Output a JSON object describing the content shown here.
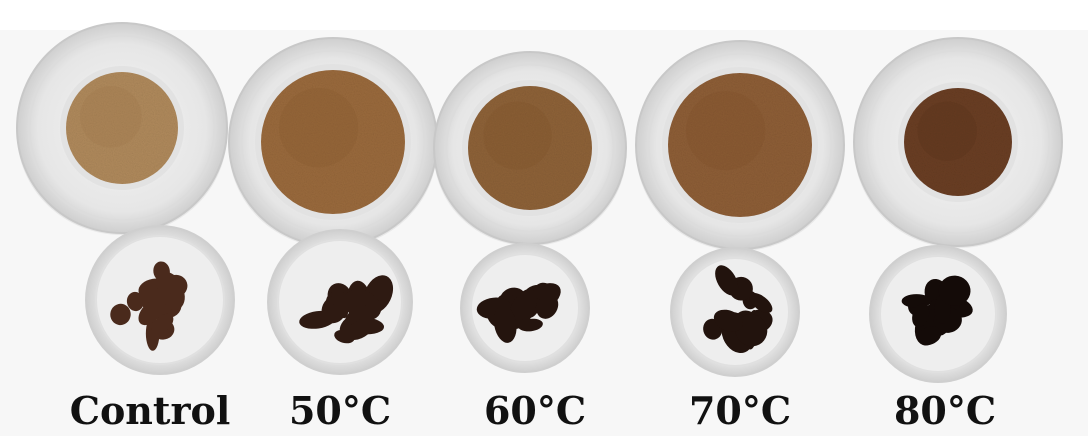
{
  "figure": {
    "labels": [
      "Control",
      "50°C",
      "60°C",
      "70°C",
      "80°C"
    ]
  },
  "samples": [
    {
      "label_ref": 0,
      "powder_color": "#b08a5c",
      "powder_dark": "#9a7448",
      "dried_color": "#4a2a1c"
    },
    {
      "label_ref": 1,
      "powder_color": "#9a6a3c",
      "powder_dark": "#84562c",
      "dried_color": "#2e1a12"
    },
    {
      "label_ref": 2,
      "powder_color": "#8e6238",
      "powder_dark": "#7a5028",
      "dried_color": "#24140e"
    },
    {
      "label_ref": 3,
      "powder_color": "#8e5e36",
      "powder_dark": "#7a4c28",
      "dried_color": "#22130d"
    },
    {
      "label_ref": 4,
      "powder_color": "#6a3e22",
      "powder_dark": "#542e18",
      "dried_color": "#140b08"
    }
  ]
}
